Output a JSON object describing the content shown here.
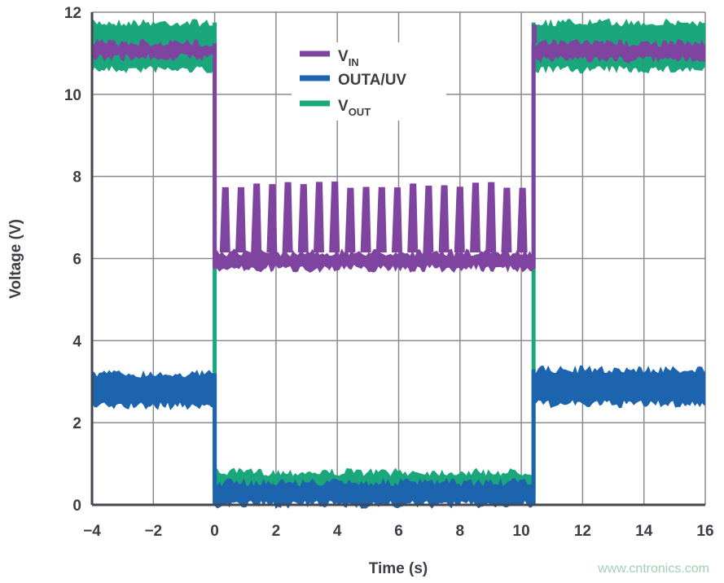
{
  "chart_data": {
    "type": "line",
    "title": "",
    "xlabel": "Time (s)",
    "ylabel": "Voltage (V)",
    "xlim": [
      -4,
      16
    ],
    "ylim": [
      0,
      12
    ],
    "xticks": [
      "−4",
      "−2",
      "0",
      "2",
      "4",
      "6",
      "8",
      "10",
      "12",
      "14",
      "16"
    ],
    "xtick_values": [
      -4,
      -2,
      0,
      2,
      4,
      6,
      8,
      10,
      12,
      14,
      16
    ],
    "yticks": [
      "0",
      "2",
      "4",
      "6",
      "8",
      "10",
      "12"
    ],
    "ytick_values": [
      0,
      2,
      4,
      6,
      8,
      10,
      12
    ],
    "grid": true,
    "legend_position": "top-center",
    "series": [
      {
        "name": "VIN",
        "label_main": "V",
        "label_sub": "IN",
        "color": "#7f43a0",
        "segments": [
          {
            "x": [
              -4,
              0
            ],
            "y_min": 10.9,
            "y_max": 11.25
          },
          {
            "x": [
              0,
              10.4
            ],
            "y_min": 5.75,
            "y_max": 6.15,
            "spikes": {
              "start": 0.35,
              "period": 0.51,
              "count": 20,
              "peak": 7.8
            }
          },
          {
            "x": [
              10.4,
              16
            ],
            "y_min": 10.85,
            "y_max": 11.25,
            "overshoot": 11.7
          }
        ]
      },
      {
        "name": "OUTA/UV",
        "label_main": "OUTA/UV",
        "label_sub": "",
        "color": "#1c64ad",
        "segments": [
          {
            "x": [
              -4,
              0
            ],
            "y_min": 2.4,
            "y_max": 3.2
          },
          {
            "x": [
              0,
              10.4
            ],
            "y_min": 0.0,
            "y_max": 0.55
          },
          {
            "x": [
              10.4,
              16
            ],
            "y_min": 2.45,
            "y_max": 3.3
          }
        ]
      },
      {
        "name": "VOUT",
        "label_main": "V",
        "label_sub": "OUT",
        "color": "#1aa77b",
        "segments": [
          {
            "x": [
              -4,
              0
            ],
            "y_min": 10.6,
            "y_max": 11.75
          },
          {
            "x": [
              0,
              10.4
            ],
            "y_min": 0.35,
            "y_max": 0.8
          },
          {
            "x": [
              10.4,
              16
            ],
            "y_min": 10.6,
            "y_max": 11.75
          }
        ]
      }
    ]
  },
  "watermark": "www.cntronics.com"
}
